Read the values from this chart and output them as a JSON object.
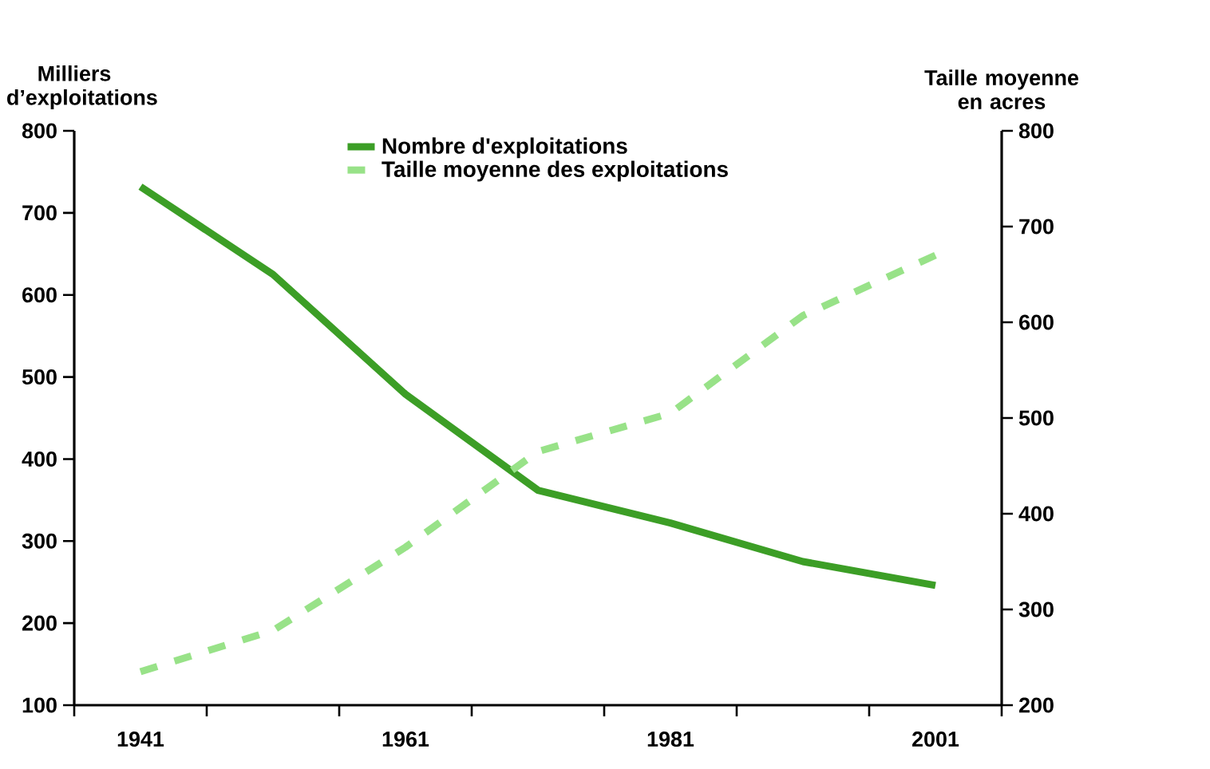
{
  "chart_data": {
    "type": "line",
    "ylabel": "Milliers d’exploitations",
    "y2label": "Taille moyenne en acres",
    "categories": [
      "1941",
      null,
      "1961",
      null,
      "1981",
      null,
      "2001"
    ],
    "series": [
      {
        "name": "Nombre d'exploitations",
        "color": "#3c9e26",
        "line_style": "solid",
        "values": [
          732,
          625,
          479,
          362,
          322,
          275,
          246
        ]
      },
      {
        "name": "Taille moyenne des exploitations",
        "color": "#98e288",
        "line_style": "dashed",
        "axis": "y2",
        "values": [
          235,
          278,
          365,
          465,
          505,
          607,
          670
        ]
      }
    ],
    "ylim": [
      100,
      800
    ],
    "yticks": [
      100,
      200,
      300,
      400,
      500,
      600,
      700,
      800
    ],
    "y2lim": [
      200,
      800
    ],
    "y2ticks": [
      200,
      300,
      400,
      500,
      600,
      700,
      800
    ],
    "grid": false,
    "legend": "top",
    "marker": "none"
  }
}
